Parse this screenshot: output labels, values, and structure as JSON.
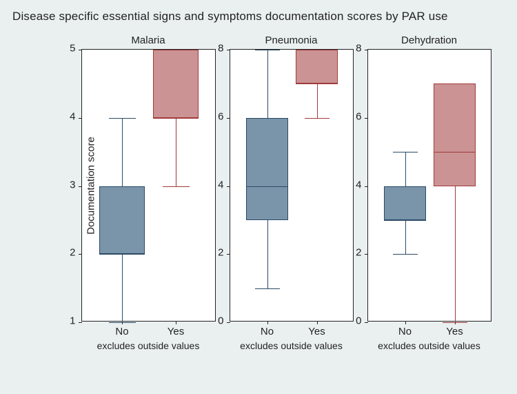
{
  "title": "Disease specific essential signs and symptoms documentation scores by PAR use",
  "ylabel": "Documentation score",
  "footnote": "excludes outside values",
  "layout": {
    "bgColor": "#eaf0f0",
    "plotBg": "#ffffff",
    "borderColor": "#222222",
    "title_fontsize": 17,
    "panel_title_fontsize": 15,
    "tick_fontsize": 15,
    "footnote_fontsize": 14,
    "plotHeightPx": 395,
    "panelGapPx": 20,
    "leftMarginPx": 80,
    "firstPanelWidthPx": 195,
    "otherPanelWidthPx": 180,
    "boxWidthFrac": 0.34,
    "capWidthFrac": 0.2,
    "xPositions": [
      0.3,
      0.7
    ],
    "xCategories": [
      "No",
      "Yes"
    ]
  },
  "series_style": {
    "No": {
      "fill": "#7a94aa",
      "stroke": "#2a4a66"
    },
    "Yes": {
      "fill": "#cb9393",
      "stroke": "#a03a3a"
    }
  },
  "panels": [
    {
      "title": "Malaria",
      "showYLabel": true,
      "ylim": [
        1,
        5
      ],
      "yticks": [
        1,
        2,
        3,
        4,
        5
      ],
      "boxes": [
        {
          "cat": "No",
          "q1": 2,
          "median": 2,
          "q3": 3,
          "whiskLow": 1,
          "whiskHigh": 4
        },
        {
          "cat": "Yes",
          "q1": 4,
          "median": 4,
          "q3": 5,
          "whiskLow": 3,
          "whiskHigh": 5
        }
      ]
    },
    {
      "title": "Pneumonia",
      "showYLabel": false,
      "ylim": [
        0,
        8
      ],
      "yticks": [
        0,
        2,
        4,
        6,
        8
      ],
      "boxes": [
        {
          "cat": "No",
          "q1": 3,
          "median": 4,
          "q3": 6,
          "whiskLow": 1,
          "whiskHigh": 8
        },
        {
          "cat": "Yes",
          "q1": 7,
          "median": 7,
          "q3": 8,
          "whiskLow": 6,
          "whiskHigh": 8
        }
      ]
    },
    {
      "title": "Dehydration",
      "showYLabel": false,
      "ylim": [
        0,
        8
      ],
      "yticks": [
        0,
        2,
        4,
        6,
        8
      ],
      "boxes": [
        {
          "cat": "No",
          "q1": 3,
          "median": 3,
          "q3": 4,
          "whiskLow": 2,
          "whiskHigh": 5
        },
        {
          "cat": "Yes",
          "q1": 4,
          "median": 5,
          "q3": 7,
          "whiskLow": 0,
          "whiskHigh": 7
        }
      ]
    }
  ]
}
